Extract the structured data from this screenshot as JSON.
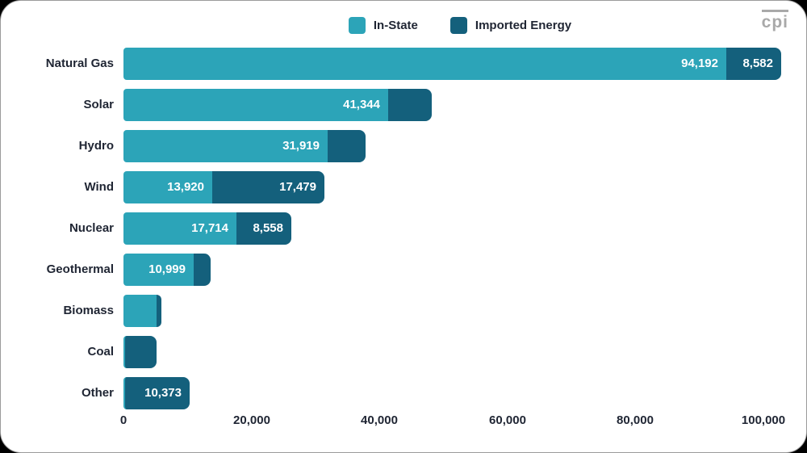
{
  "logo": {
    "text": "cpi"
  },
  "colors": {
    "in_state": "#2CA4B8",
    "imported": "#14607C",
    "text": "#1F2533",
    "value_label": "#FFFFFF",
    "logo": "#A9A9A9",
    "card_background": "#FFFFFF"
  },
  "chart_data": {
    "type": "bar",
    "orientation": "horizontal-stacked",
    "title": "",
    "xlabel": "",
    "ylabel": "",
    "grid": false,
    "legend_position": "top",
    "categories": [
      "Natural Gas",
      "Solar",
      "Hydro",
      "Wind",
      "Nuclear",
      "Geothermal",
      "Biomass",
      "Coal",
      "Other"
    ],
    "series": [
      {
        "name": "In-State",
        "color": "#2CA4B8",
        "values": [
          94192,
          41344,
          31919,
          13920,
          17714,
          10999,
          5200,
          0,
          0
        ],
        "data_labels": [
          "94,192",
          "41,344",
          "31,919",
          "13,920",
          "17,714",
          "10,999",
          "",
          "",
          ""
        ]
      },
      {
        "name": "Imported Energy",
        "color": "#14607C",
        "values": [
          8582,
          6800,
          5900,
          17479,
          8558,
          2650,
          750,
          5200,
          10373
        ],
        "data_labels": [
          "8,582",
          "",
          "",
          "17,479",
          "8,558",
          "",
          "",
          "",
          "10,373"
        ]
      }
    ],
    "x_axis": {
      "max": 100000,
      "ticks": [
        0,
        20000,
        40000,
        60000,
        80000,
        100000
      ],
      "tick_labels": [
        "0",
        "20,000",
        "40,000",
        "60,000",
        "80,000",
        "100,000"
      ]
    }
  }
}
